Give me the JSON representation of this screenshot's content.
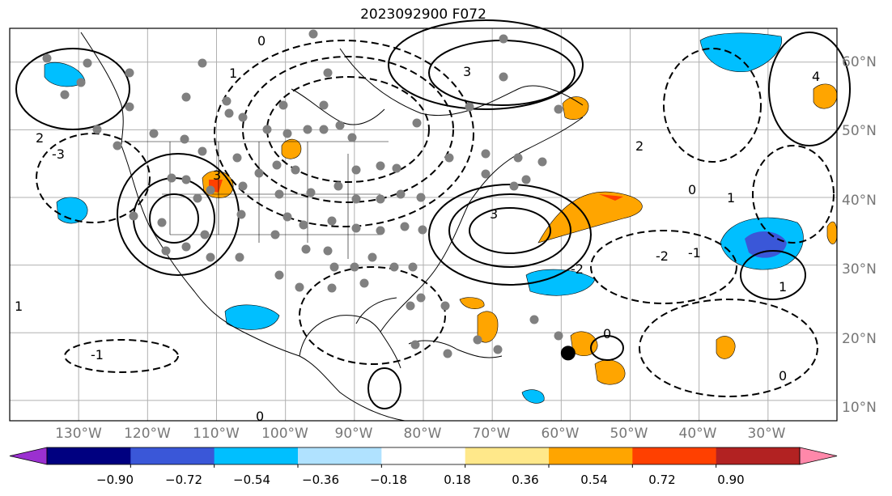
{
  "title": "2023092900 F072",
  "map": {
    "projection": "plate carree",
    "lon_range": [
      -140,
      -20
    ],
    "lat_range": [
      7,
      65
    ],
    "grid": true,
    "lat_labels": [
      "60°N",
      "50°N",
      "40°N",
      "30°N",
      "20°N",
      "10°N"
    ],
    "lon_labels": [
      "130°W",
      "120°W",
      "110°W",
      "100°W",
      "90°W",
      "80°W",
      "70°W",
      "60°W",
      "50°W",
      "40°W",
      "30°W"
    ],
    "station_marker": {
      "lon": -59,
      "lat": 17,
      "color": "#000000"
    },
    "contour_labels": [
      "0",
      "1",
      "2",
      "3",
      "4",
      "-1",
      "-2",
      "-3"
    ]
  },
  "colorbar": {
    "extend": "both",
    "ticks": [
      "−0.90",
      "−0.72",
      "−0.54",
      "−0.36",
      "−0.18",
      "0.18",
      "0.36",
      "0.54",
      "0.72",
      "0.90"
    ],
    "colors": [
      "#9b30d0",
      "#000080",
      "#3a57d8",
      "#00bfff",
      "#b0e2ff",
      "#ffffff",
      "#ffe88a",
      "#ffa500",
      "#ff4000",
      "#b22222",
      "#ff88aa"
    ]
  }
}
